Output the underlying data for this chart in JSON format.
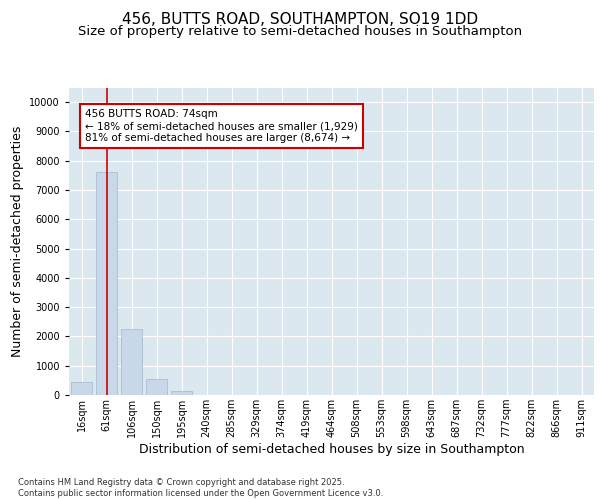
{
  "title_line1": "456, BUTTS ROAD, SOUTHAMPTON, SO19 1DD",
  "title_line2": "Size of property relative to semi-detached houses in Southampton",
  "xlabel": "Distribution of semi-detached houses by size in Southampton",
  "ylabel": "Number of semi-detached properties",
  "categories": [
    "16sqm",
    "61sqm",
    "106sqm",
    "150sqm",
    "195sqm",
    "240sqm",
    "285sqm",
    "329sqm",
    "374sqm",
    "419sqm",
    "464sqm",
    "508sqm",
    "553sqm",
    "598sqm",
    "643sqm",
    "687sqm",
    "732sqm",
    "777sqm",
    "822sqm",
    "866sqm",
    "911sqm"
  ],
  "values": [
    430,
    7600,
    2250,
    530,
    130,
    0,
    0,
    0,
    0,
    0,
    0,
    0,
    0,
    0,
    0,
    0,
    0,
    0,
    0,
    0,
    0
  ],
  "bar_color": "#c8d8e8",
  "bar_edge_color": "#a0b8cc",
  "vline_x_index": 1,
  "vline_color": "#cc0000",
  "annotation_text": "456 BUTTS ROAD: 74sqm\n← 18% of semi-detached houses are smaller (1,929)\n81% of semi-detached houses are larger (8,674) →",
  "box_facecolor": "white",
  "box_edgecolor": "#cc0000",
  "ylim": [
    0,
    10500
  ],
  "yticks": [
    0,
    1000,
    2000,
    3000,
    4000,
    5000,
    6000,
    7000,
    8000,
    9000,
    10000
  ],
  "background_color": "#dce8f0",
  "footer_text": "Contains HM Land Registry data © Crown copyright and database right 2025.\nContains public sector information licensed under the Open Government Licence v3.0.",
  "title_fontsize": 11,
  "subtitle_fontsize": 9.5,
  "tick_fontsize": 7,
  "label_fontsize": 9,
  "annotation_fontsize": 7.5
}
